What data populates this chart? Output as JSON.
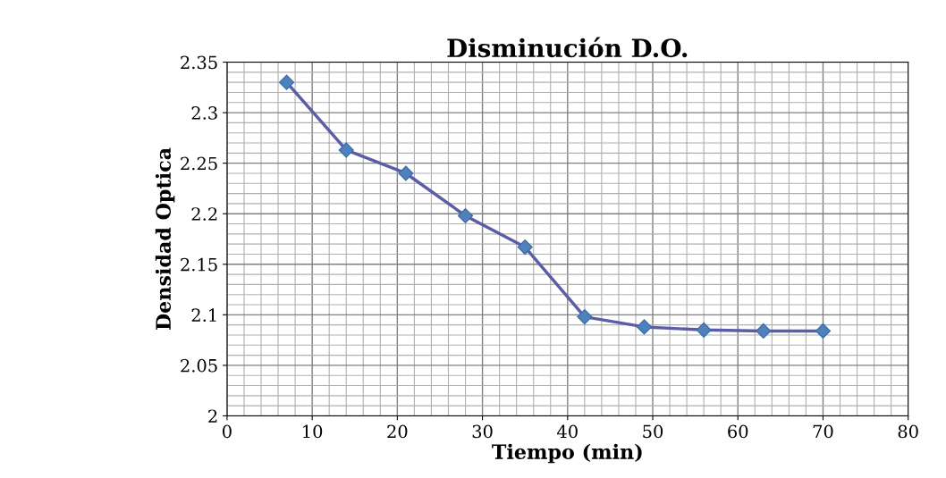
{
  "chart_data": {
    "type": "line",
    "title": "Disminución D.O.",
    "xlabel": "Tiempo (min)",
    "ylabel": "Densidad Optica",
    "x": [
      7,
      14,
      21,
      28,
      35,
      42,
      49,
      56,
      63,
      70
    ],
    "series": [
      {
        "color": "#5b5ea6",
        "values": [
          2.33,
          2.263,
          2.24,
          2.198,
          2.167,
          2.098,
          2.088,
          2.085,
          2.084,
          2.084
        ]
      }
    ],
    "xlim": [
      0,
      80
    ],
    "xticks": [
      0,
      10,
      20,
      30,
      40,
      50,
      60,
      70,
      80
    ],
    "ylim": [
      2,
      2.35
    ],
    "yticks": [
      2,
      2.05,
      2.1,
      2.15,
      2.2,
      2.25,
      2.3,
      2.35
    ],
    "grid": true,
    "marker": "diamond",
    "line_style": "solid",
    "legend": false
  }
}
